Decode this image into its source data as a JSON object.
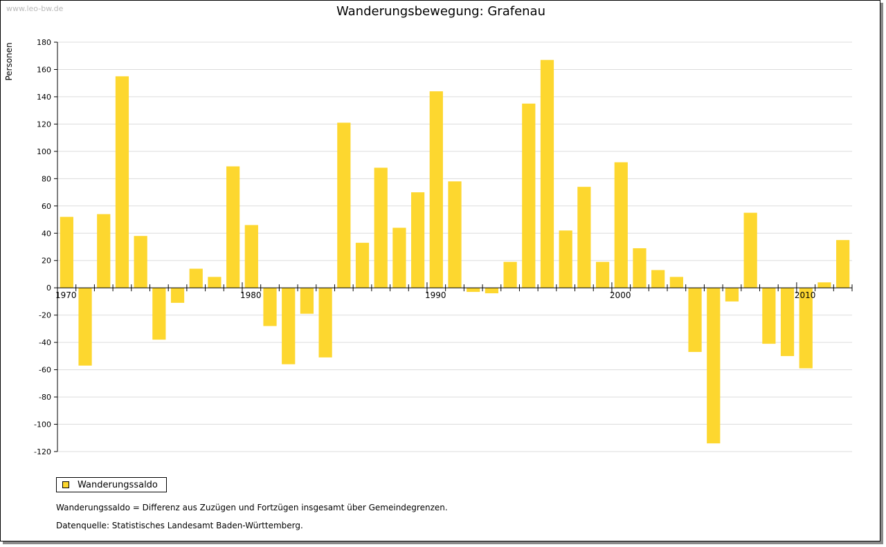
{
  "watermark": "www.leo-bw.de",
  "notes": {
    "definition": "Wanderungssaldo = Differenz aus Zuzügen und Fortzügen insgesamt über Gemeindegrenzen.",
    "source": "Datenquelle: Statistisches Landesamt Baden-Württemberg."
  },
  "colors": {
    "bar": "#fdd72f",
    "grid": "#dcdcdc",
    "axis": "#000000"
  },
  "chart_data": {
    "type": "bar",
    "title": "Wanderungsbewegung: Grafenau",
    "ylabel": "Personen",
    "xlabel": "",
    "ylim": [
      -120,
      180
    ],
    "yticks": [
      180,
      160,
      140,
      120,
      100,
      80,
      60,
      40,
      20,
      0,
      -20,
      -40,
      -60,
      -80,
      -100,
      -120
    ],
    "xtick_labels": [
      1970,
      1980,
      1990,
      2000,
      2010
    ],
    "grid": true,
    "legend_position": "bottom-left",
    "series": [
      {
        "name": "Wanderungssaldo",
        "x": [
          1970,
          1971,
          1972,
          1973,
          1974,
          1975,
          1976,
          1977,
          1978,
          1979,
          1980,
          1981,
          1982,
          1983,
          1984,
          1985,
          1986,
          1987,
          1988,
          1989,
          1990,
          1991,
          1992,
          1993,
          1994,
          1995,
          1996,
          1997,
          1998,
          1999,
          2000,
          2001,
          2002,
          2003,
          2004,
          2005,
          2006,
          2007,
          2008,
          2009,
          2010,
          2011,
          2012
        ],
        "values": [
          52,
          -57,
          54,
          155,
          38,
          -38,
          -11,
          14,
          8,
          89,
          46,
          -28,
          -56,
          -19,
          -51,
          121,
          33,
          88,
          44,
          70,
          144,
          78,
          -3,
          -4,
          19,
          135,
          167,
          42,
          74,
          19,
          92,
          29,
          13,
          8,
          -47,
          -114,
          -10,
          55,
          -41,
          -50,
          -59,
          4,
          35
        ]
      }
    ]
  }
}
